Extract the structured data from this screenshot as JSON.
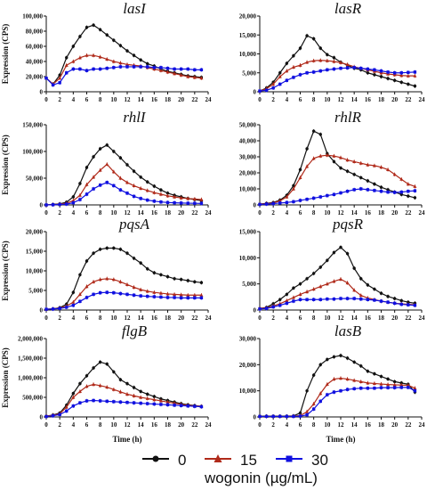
{
  "figure": {
    "xlabel": "Time (h)",
    "ylabel": "Expression (CPS)",
    "legend_title": "wogonin (µg/mL)",
    "legend": [
      {
        "name": "0",
        "color": "#111111",
        "marker": "circle"
      },
      {
        "name": "15",
        "color": "#b02a1a",
        "marker": "triangle"
      },
      {
        "name": "30",
        "color": "#1010e0",
        "marker": "square"
      }
    ]
  },
  "chart_data": [
    {
      "type": "line",
      "title": "lasI",
      "ylim": [
        0,
        100000
      ],
      "yticks": [
        0,
        20000,
        40000,
        60000,
        80000,
        100000
      ],
      "ytick_labels": [
        "0",
        "20,000",
        "40,000",
        "60,000",
        "80,000",
        "100,000"
      ],
      "x": [
        0,
        1,
        2,
        3,
        4,
        5,
        6,
        7,
        8,
        9,
        10,
        11,
        12,
        13,
        14,
        15,
        16,
        17,
        18,
        19,
        20,
        21,
        22,
        23
      ],
      "xticks": [
        0,
        2,
        4,
        6,
        8,
        10,
        12,
        14,
        16,
        18,
        20,
        22,
        24
      ],
      "series": [
        {
          "name": "0",
          "values": [
            18000,
            10000,
            22000,
            45000,
            60000,
            73000,
            85000,
            88000,
            82000,
            75000,
            68000,
            61000,
            54000,
            48000,
            42000,
            37000,
            34000,
            30000,
            27000,
            25000,
            23000,
            21000,
            20000,
            19000
          ]
        },
        {
          "name": "15",
          "values": [
            18000,
            10000,
            18000,
            35000,
            40000,
            45000,
            48000,
            48000,
            46000,
            43000,
            40000,
            38000,
            36000,
            35000,
            34000,
            32000,
            30000,
            28000,
            26000,
            24000,
            22000,
            20000,
            19000,
            18000
          ]
        },
        {
          "name": "30",
          "values": [
            18000,
            9000,
            12000,
            25000,
            30000,
            30000,
            28000,
            30000,
            30000,
            31000,
            32000,
            33000,
            33000,
            33000,
            33000,
            33000,
            32000,
            32000,
            31000,
            30000,
            30000,
            30000,
            29000,
            29000
          ]
        }
      ]
    },
    {
      "type": "line",
      "title": "lasR",
      "ylim": [
        0,
        20000
      ],
      "yticks": [
        0,
        5000,
        10000,
        15000,
        20000
      ],
      "ytick_labels": [
        "0",
        "5,000",
        "10,000",
        "15,000",
        "20,000"
      ],
      "x": [
        0,
        1,
        2,
        3,
        4,
        5,
        6,
        7,
        8,
        9,
        10,
        11,
        12,
        13,
        14,
        15,
        16,
        17,
        18,
        19,
        20,
        21,
        22,
        23
      ],
      "xticks": [
        0,
        2,
        4,
        6,
        8,
        10,
        12,
        14,
        16,
        18,
        20,
        22,
        24
      ],
      "series": [
        {
          "name": "0",
          "values": [
            200,
            1000,
            2500,
            5000,
            7500,
            9500,
            11500,
            14800,
            14000,
            11500,
            9800,
            9000,
            7800,
            7000,
            6200,
            5800,
            5000,
            4500,
            4000,
            3500,
            3000,
            2500,
            2000,
            1500
          ]
        },
        {
          "name": "15",
          "values": [
            200,
            800,
            2000,
            4000,
            5500,
            6500,
            7000,
            7800,
            8200,
            8300,
            8200,
            8000,
            7700,
            7200,
            6600,
            6200,
            5800,
            5400,
            5000,
            4700,
            4500,
            4300,
            4200,
            4200
          ]
        },
        {
          "name": "30",
          "values": [
            200,
            400,
            1000,
            2000,
            3000,
            3800,
            4500,
            5000,
            5200,
            5500,
            5800,
            6000,
            6200,
            6300,
            6400,
            6200,
            6000,
            5800,
            5500,
            5200,
            5000,
            5000,
            5100,
            5200
          ]
        }
      ]
    },
    {
      "type": "line",
      "title": "rhlI",
      "ylim": [
        0,
        150000
      ],
      "yticks": [
        0,
        50000,
        100000,
        150000
      ],
      "ytick_labels": [
        "0",
        "50,000",
        "100,000",
        "150,000"
      ],
      "x": [
        0,
        1,
        2,
        3,
        4,
        5,
        6,
        7,
        8,
        9,
        10,
        11,
        12,
        13,
        14,
        15,
        16,
        17,
        18,
        19,
        20,
        21,
        22,
        23
      ],
      "xticks": [
        0,
        2,
        4,
        6,
        8,
        10,
        12,
        14,
        16,
        18,
        20,
        22,
        24
      ],
      "series": [
        {
          "name": "0",
          "values": [
            0,
            1000,
            2000,
            5000,
            15000,
            40000,
            70000,
            90000,
            105000,
            112000,
            100000,
            88000,
            75000,
            63000,
            52000,
            43000,
            35000,
            28000,
            22000,
            18000,
            15000,
            12000,
            10000,
            8000
          ]
        },
        {
          "name": "15",
          "values": [
            0,
            500,
            1500,
            3000,
            8000,
            18000,
            38000,
            52000,
            65000,
            76000,
            62000,
            50000,
            42000,
            36000,
            31000,
            27000,
            23000,
            20000,
            17000,
            15000,
            13000,
            12000,
            11000,
            10000
          ]
        },
        {
          "name": "30",
          "values": [
            0,
            300,
            800,
            1500,
            4000,
            10000,
            20000,
            30000,
            37000,
            42000,
            36000,
            28000,
            22000,
            16000,
            12000,
            9000,
            7000,
            5500,
            4500,
            4000,
            3500,
            3200,
            3000,
            2800
          ]
        }
      ]
    },
    {
      "type": "line",
      "title": "rhlR",
      "ylim": [
        0,
        50000
      ],
      "yticks": [
        0,
        10000,
        20000,
        30000,
        40000,
        50000
      ],
      "ytick_labels": [
        "0",
        "10,000",
        "20,000",
        "30,000",
        "40,000",
        "50,000"
      ],
      "x": [
        0,
        1,
        2,
        3,
        4,
        5,
        6,
        7,
        8,
        9,
        10,
        11,
        12,
        13,
        14,
        15,
        16,
        17,
        18,
        19,
        20,
        21,
        22,
        23
      ],
      "xticks": [
        0,
        2,
        4,
        6,
        8,
        10,
        12,
        14,
        16,
        18,
        20,
        22,
        24
      ],
      "series": [
        {
          "name": "0",
          "values": [
            500,
            1000,
            1500,
            3000,
            6000,
            12000,
            22000,
            35000,
            46000,
            44000,
            32000,
            27000,
            23000,
            21000,
            19000,
            17000,
            15000,
            13000,
            11000,
            9500,
            8000,
            6500,
            5500,
            4500
          ]
        },
        {
          "name": "15",
          "values": [
            500,
            800,
            1200,
            2500,
            5000,
            10000,
            17000,
            24000,
            29000,
            30500,
            31000,
            30500,
            29500,
            28000,
            27000,
            26000,
            25000,
            24500,
            23500,
            22000,
            19000,
            16000,
            13000,
            11500
          ]
        },
        {
          "name": "30",
          "values": [
            300,
            500,
            800,
            1200,
            1500,
            2000,
            2800,
            3500,
            4200,
            5000,
            5800,
            6500,
            7500,
            8500,
            9500,
            10000,
            9500,
            9000,
            8500,
            8000,
            7800,
            8000,
            8500,
            8800
          ]
        }
      ]
    },
    {
      "type": "line",
      "title": "pqsA",
      "ylim": [
        0,
        20000
      ],
      "yticks": [
        0,
        5000,
        10000,
        15000,
        20000
      ],
      "ytick_labels": [
        "0",
        "5,000",
        "10,000",
        "15,000",
        "20,000"
      ],
      "x": [
        0,
        1,
        2,
        3,
        4,
        5,
        6,
        7,
        8,
        9,
        10,
        11,
        12,
        13,
        14,
        15,
        16,
        17,
        18,
        19,
        20,
        21,
        22,
        23
      ],
      "xticks": [
        0,
        2,
        4,
        6,
        8,
        10,
        12,
        14,
        16,
        18,
        20,
        22,
        24
      ],
      "series": [
        {
          "name": "0",
          "values": [
            200,
            300,
            600,
            1500,
            4500,
            9000,
            12500,
            14500,
            15500,
            15800,
            15800,
            15500,
            14500,
            13200,
            12000,
            10500,
            9500,
            9000,
            8500,
            8000,
            7800,
            7500,
            7200,
            7000
          ]
        },
        {
          "name": "15",
          "values": [
            200,
            300,
            500,
            1000,
            2000,
            4000,
            6000,
            7200,
            7800,
            8000,
            7800,
            7200,
            6500,
            5800,
            5200,
            4800,
            4500,
            4300,
            4100,
            4000,
            3900,
            3800,
            3800,
            3800
          ]
        },
        {
          "name": "30",
          "values": [
            200,
            250,
            400,
            700,
            1200,
            2200,
            3200,
            4000,
            4400,
            4500,
            4400,
            4200,
            4000,
            3800,
            3600,
            3500,
            3400,
            3300,
            3200,
            3200,
            3100,
            3100,
            3100,
            3100
          ]
        }
      ]
    },
    {
      "type": "line",
      "title": "pqsR",
      "ylim": [
        0,
        15000
      ],
      "yticks": [
        0,
        5000,
        10000,
        15000
      ],
      "ytick_labels": [
        "0",
        "5,000",
        "10,000",
        "15,000"
      ],
      "x": [
        0,
        1,
        2,
        3,
        4,
        5,
        6,
        7,
        8,
        9,
        10,
        11,
        12,
        13,
        14,
        15,
        16,
        17,
        18,
        19,
        20,
        21,
        22,
        23
      ],
      "xticks": [
        0,
        2,
        4,
        6,
        8,
        10,
        12,
        14,
        16,
        18,
        20,
        22,
        24
      ],
      "series": [
        {
          "name": "0",
          "values": [
            300,
            500,
            1200,
            2000,
            3000,
            4200,
            5000,
            6000,
            7000,
            8200,
            9500,
            11000,
            12000,
            10800,
            8000,
            6000,
            4800,
            4000,
            3200,
            2600,
            2200,
            1800,
            1500,
            1300
          ]
        },
        {
          "name": "15",
          "values": [
            300,
            400,
            800,
            1200,
            1800,
            2400,
            3000,
            3500,
            4000,
            4500,
            5000,
            5500,
            5900,
            5200,
            3800,
            2800,
            2300,
            2000,
            1700,
            1500,
            1300,
            1200,
            1100,
            1000
          ]
        },
        {
          "name": "30",
          "values": [
            200,
            300,
            600,
            900,
            1300,
            1700,
            2000,
            2000,
            2000,
            2000,
            2100,
            2100,
            2200,
            2200,
            2200,
            2100,
            2000,
            1900,
            1700,
            1500,
            1300,
            1100,
            1000,
            900
          ]
        }
      ]
    },
    {
      "type": "line",
      "title": "flgB",
      "ylim": [
        0,
        2000000
      ],
      "yticks": [
        0,
        500000,
        1000000,
        1500000,
        2000000
      ],
      "ytick_labels": [
        "0",
        "500,000",
        "1,000,000",
        "1,500,000",
        "2,000,000"
      ],
      "x": [
        0,
        1,
        2,
        3,
        4,
        5,
        6,
        7,
        8,
        9,
        10,
        11,
        12,
        13,
        14,
        15,
        16,
        17,
        18,
        19,
        20,
        21,
        22,
        23
      ],
      "xticks": [
        0,
        2,
        4,
        6,
        8,
        10,
        12,
        14,
        16,
        18,
        20,
        22,
        24
      ],
      "series": [
        {
          "name": "0",
          "values": [
            20000,
            50000,
            100000,
            300000,
            600000,
            850000,
            1050000,
            1250000,
            1400000,
            1350000,
            1150000,
            950000,
            850000,
            750000,
            650000,
            580000,
            520000,
            460000,
            420000,
            380000,
            340000,
            310000,
            290000,
            270000
          ]
        },
        {
          "name": "15",
          "values": [
            20000,
            40000,
            80000,
            250000,
            500000,
            650000,
            780000,
            830000,
            800000,
            760000,
            700000,
            640000,
            580000,
            540000,
            500000,
            470000,
            440000,
            410000,
            380000,
            350000,
            320000,
            300000,
            280000,
            270000
          ]
        },
        {
          "name": "30",
          "values": [
            10000,
            30000,
            60000,
            150000,
            280000,
            360000,
            410000,
            420000,
            410000,
            400000,
            390000,
            380000,
            370000,
            360000,
            350000,
            340000,
            330000,
            320000,
            310000,
            300000,
            290000,
            280000,
            270000,
            260000
          ]
        }
      ]
    },
    {
      "type": "line",
      "title": "lasB",
      "ylim": [
        0,
        30000
      ],
      "yticks": [
        0,
        10000,
        20000,
        30000
      ],
      "ytick_labels": [
        "0",
        "10,000",
        "20,000",
        "30,000"
      ],
      "x": [
        0,
        1,
        2,
        3,
        4,
        5,
        6,
        7,
        8,
        9,
        10,
        11,
        12,
        13,
        14,
        15,
        16,
        17,
        18,
        19,
        20,
        21,
        22,
        23
      ],
      "xticks": [
        0,
        2,
        4,
        6,
        8,
        10,
        12,
        14,
        16,
        18,
        20,
        22,
        24
      ],
      "series": [
        {
          "name": "0",
          "values": [
            300,
            300,
            300,
            300,
            300,
            400,
            1500,
            10000,
            16000,
            20000,
            22000,
            23000,
            23500,
            22500,
            21000,
            19500,
            17500,
            16500,
            15500,
            14500,
            13500,
            13000,
            12500,
            9500
          ]
        },
        {
          "name": "15",
          "values": [
            200,
            200,
            200,
            200,
            200,
            300,
            500,
            2000,
            5000,
            9000,
            12500,
            14500,
            14800,
            14500,
            14000,
            13500,
            13000,
            12800,
            12600,
            12400,
            12300,
            12200,
            12100,
            11000
          ]
        },
        {
          "name": "30",
          "values": [
            200,
            200,
            200,
            200,
            200,
            200,
            300,
            800,
            3000,
            6000,
            8500,
            9500,
            10000,
            10500,
            10800,
            11000,
            11000,
            11000,
            11200,
            11200,
            11200,
            11300,
            11300,
            10000
          ]
        }
      ]
    }
  ]
}
